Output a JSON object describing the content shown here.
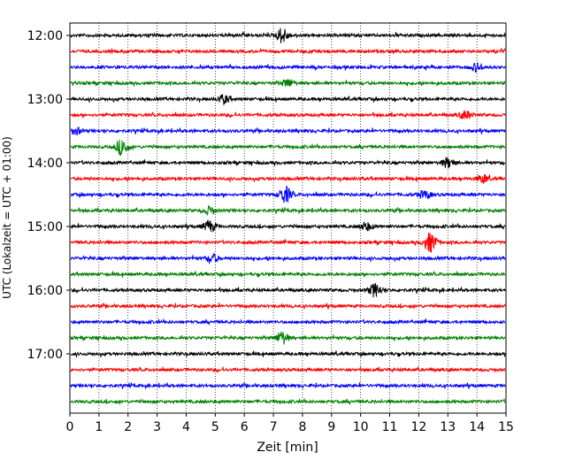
{
  "chart_data": {
    "type": "line",
    "title": "",
    "xlabel": "Zeit  [min]",
    "ylabel": "UTC (Lokalzeit = UTC + 01:00)",
    "xlim": [
      0,
      15
    ],
    "x_ticks": [
      "0",
      "1",
      "2",
      "3",
      "4",
      "5",
      "6",
      "7",
      "8",
      "9",
      "10",
      "11",
      "12",
      "13",
      "14",
      "15"
    ],
    "y_ticks": [
      "12:00",
      "13:00",
      "14:00",
      "15:00",
      "16:00",
      "17:00"
    ],
    "grid": "vertical dotted at each minute",
    "trace_interval_minutes": 15,
    "trace_colors": [
      "#000000",
      "#ff0000",
      "#0000ff",
      "#008000"
    ],
    "traces": [
      {
        "start": "12:00",
        "events": [
          {
            "t": 7.3,
            "amp": 0.9
          }
        ]
      },
      {
        "start": "12:15",
        "events": []
      },
      {
        "start": "12:30",
        "events": [
          {
            "t": 14.0,
            "amp": 0.5
          }
        ]
      },
      {
        "start": "12:45",
        "events": [
          {
            "t": 7.5,
            "amp": 0.5
          }
        ]
      },
      {
        "start": "13:00",
        "events": [
          {
            "t": 5.3,
            "amp": 0.5
          }
        ]
      },
      {
        "start": "13:15",
        "events": [
          {
            "t": 13.6,
            "amp": 0.5
          }
        ]
      },
      {
        "start": "13:30",
        "events": [
          {
            "t": 0.2,
            "amp": 0.4
          }
        ]
      },
      {
        "start": "13:45",
        "events": [
          {
            "t": 1.8,
            "amp": 1.0
          }
        ]
      },
      {
        "start": "14:00",
        "events": [
          {
            "t": 13.0,
            "amp": 0.6
          }
        ]
      },
      {
        "start": "14:15",
        "events": [
          {
            "t": 14.2,
            "amp": 0.5
          }
        ]
      },
      {
        "start": "14:30",
        "events": [
          {
            "t": 7.4,
            "amp": 1.0
          },
          {
            "t": 12.2,
            "amp": 0.5
          }
        ]
      },
      {
        "start": "14:45",
        "events": [
          {
            "t": 4.8,
            "amp": 0.5
          }
        ]
      },
      {
        "start": "15:00",
        "events": [
          {
            "t": 4.8,
            "amp": 0.7
          },
          {
            "t": 10.2,
            "amp": 0.5
          }
        ]
      },
      {
        "start": "15:15",
        "events": [
          {
            "t": 12.4,
            "amp": 1.2
          }
        ]
      },
      {
        "start": "15:30",
        "events": [
          {
            "t": 4.9,
            "amp": 0.5
          }
        ]
      },
      {
        "start": "15:45",
        "events": []
      },
      {
        "start": "16:00",
        "events": [
          {
            "t": 10.5,
            "amp": 0.8
          }
        ]
      },
      {
        "start": "16:15",
        "events": []
      },
      {
        "start": "16:30",
        "events": []
      },
      {
        "start": "16:45",
        "events": [
          {
            "t": 7.3,
            "amp": 0.8
          }
        ]
      },
      {
        "start": "17:00",
        "events": []
      },
      {
        "start": "17:15",
        "events": []
      },
      {
        "start": "17:30",
        "events": []
      },
      {
        "start": "17:45",
        "events": []
      }
    ]
  }
}
